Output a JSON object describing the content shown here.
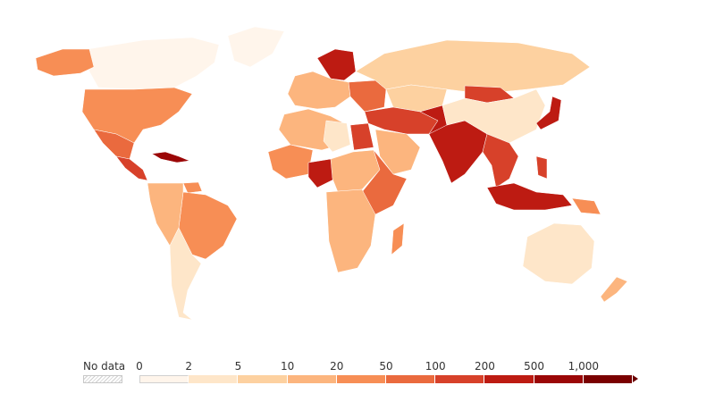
{
  "legend": {
    "no_data_label": "No data",
    "bins": [
      {
        "label": "0",
        "color": "#fff5eb"
      },
      {
        "label": "2",
        "color": "#fee6c9"
      },
      {
        "label": "5",
        "color": "#fdd1a0"
      },
      {
        "label": "10",
        "color": "#fcb57e"
      },
      {
        "label": "20",
        "color": "#f78e55"
      },
      {
        "label": "50",
        "color": "#ea6a3e"
      },
      {
        "label": "100",
        "color": "#d7412a"
      },
      {
        "label": "200",
        "color": "#bd1b12"
      },
      {
        "label": "500",
        "color": "#9b0707"
      },
      {
        "label": "1,000",
        "color": "#7a0000"
      }
    ],
    "overflow_color": "#6a0000"
  },
  "regions": [
    {
      "name": "Canada",
      "value": 1
    },
    {
      "name": "Greenland",
      "value": 0
    },
    {
      "name": "Alaska",
      "value": 30
    },
    {
      "name": "United States",
      "value": 30
    },
    {
      "name": "Mexico",
      "value": 60
    },
    {
      "name": "Central America",
      "value": 180
    },
    {
      "name": "Caribbean",
      "value": 500
    },
    {
      "name": "Brazil",
      "value": 25
    },
    {
      "name": "South America West",
      "value": 25
    },
    {
      "name": "Argentina",
      "value": 12
    },
    {
      "name": "Guianas",
      "value": 3
    },
    {
      "name": "Western Europe",
      "value": 300
    },
    {
      "name": "Scandinavia",
      "value": 15
    },
    {
      "name": "Eastern Europe",
      "value": 70
    },
    {
      "name": "Russia",
      "value": 8
    },
    {
      "name": "Kazakhstan",
      "value": 6
    },
    {
      "name": "Middle East",
      "value": 110
    },
    {
      "name": "Arabian Peninsula",
      "value": 15
    },
    {
      "name": "North Africa",
      "value": 15
    },
    {
      "name": "Libya",
      "value": 3
    },
    {
      "name": "Egypt",
      "value": 100
    },
    {
      "name": "West Africa",
      "value": 25
    },
    {
      "name": "Nigeria",
      "value": 200
    },
    {
      "name": "Central Africa",
      "value": 15
    },
    {
      "name": "East Africa",
      "value": 60
    },
    {
      "name": "Southern Africa",
      "value": 12
    },
    {
      "name": "Madagascar",
      "value": 40
    },
    {
      "name": "India",
      "value": 400
    },
    {
      "name": "Pakistan",
      "value": 280
    },
    {
      "name": "China",
      "value": 150
    },
    {
      "name": "Mongolia",
      "value": 2
    },
    {
      "name": "Southeast Asia",
      "value": 150
    },
    {
      "name": "Japan",
      "value": 340
    },
    {
      "name": "Indonesia",
      "value": 140
    },
    {
      "name": "Philippines",
      "value": 350
    },
    {
      "name": "Papua New Guinea",
      "value": 20
    },
    {
      "name": "Australia",
      "value": 3
    },
    {
      "name": "New Zealand",
      "value": 18
    }
  ]
}
